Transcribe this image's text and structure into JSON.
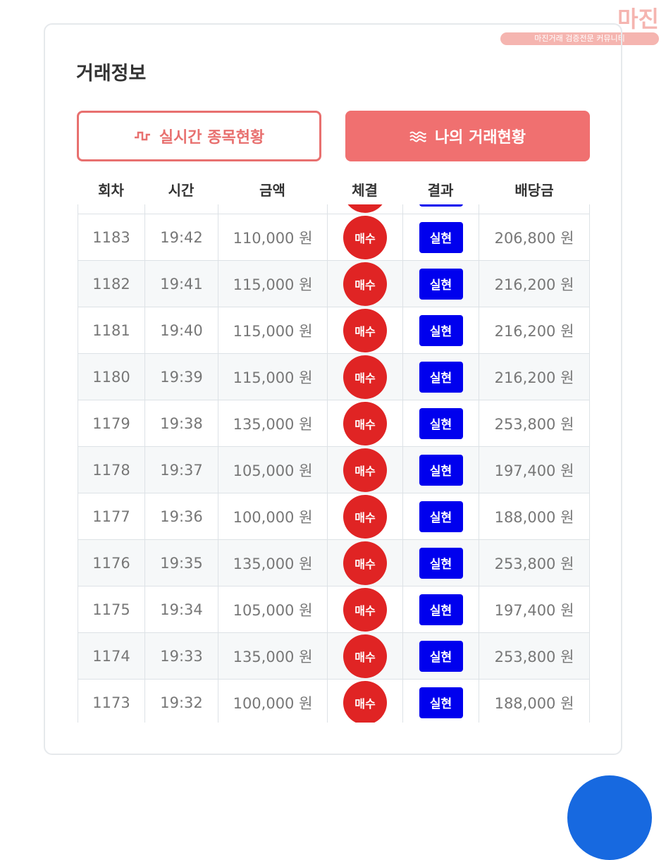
{
  "watermark": {
    "brand": "마진",
    "tagline": "마진거래 검증전문 커뮤니티"
  },
  "header": {
    "title": "거래정보"
  },
  "tabs": [
    "실시간 종목현황",
    "나의 거래현황"
  ],
  "table": {
    "headers": [
      "회차",
      "시간",
      "금액",
      "체결",
      "결과",
      "배당금"
    ],
    "rows": [
      [
        "1183",
        "19:42",
        "110,000 원",
        "매수",
        "실현",
        "206,800 원"
      ],
      [
        "1182",
        "19:41",
        "115,000 원",
        "매수",
        "실현",
        "216,200 원"
      ],
      [
        "1181",
        "19:40",
        "115,000 원",
        "매수",
        "실현",
        "216,200 원"
      ],
      [
        "1180",
        "19:39",
        "115,000 원",
        "매수",
        "실현",
        "216,200 원"
      ],
      [
        "1179",
        "19:38",
        "135,000 원",
        "매수",
        "실현",
        "253,800 원"
      ],
      [
        "1178",
        "19:37",
        "105,000 원",
        "매수",
        "실현",
        "197,400 원"
      ],
      [
        "1177",
        "19:36",
        "100,000 원",
        "매수",
        "실현",
        "188,000 원"
      ],
      [
        "1176",
        "19:35",
        "135,000 원",
        "매수",
        "실현",
        "253,800 원"
      ],
      [
        "1175",
        "19:34",
        "105,000 원",
        "매수",
        "실현",
        "197,400 원"
      ],
      [
        "1174",
        "19:33",
        "135,000 원",
        "매수",
        "실현",
        "253,800 원"
      ],
      [
        "1173",
        "19:32",
        "100,000 원",
        "매수",
        "실현",
        "188,000 원"
      ]
    ]
  }
}
